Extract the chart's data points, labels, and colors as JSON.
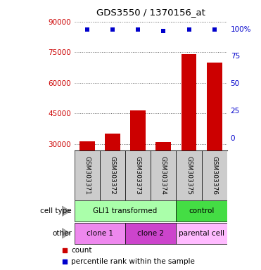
{
  "title": "GDS3550 / 1370156_at",
  "samples": [
    "GSM303371",
    "GSM303372",
    "GSM303373",
    "GSM303374",
    "GSM303375",
    "GSM303376"
  ],
  "counts": [
    31200,
    35000,
    46500,
    31000,
    74000,
    70000
  ],
  "percentile_ranks": [
    99,
    99,
    99,
    98,
    99,
    99
  ],
  "ylim_left": [
    27000,
    92000
  ],
  "yticks_left": [
    30000,
    45000,
    60000,
    75000,
    90000
  ],
  "ylim_right": [
    -11,
    110
  ],
  "yticks_right": [
    0,
    25,
    50,
    75,
    100
  ],
  "bar_color": "#cc0000",
  "dot_color": "#0000cc",
  "bar_width": 0.6,
  "cell_type_groups": [
    {
      "label": "GLI1 transformed",
      "samples": [
        0,
        1,
        2,
        3
      ],
      "color": "#aaffaa"
    },
    {
      "label": "control",
      "samples": [
        4,
        5
      ],
      "color": "#44dd44"
    }
  ],
  "other_groups": [
    {
      "label": "clone 1",
      "samples": [
        0,
        1
      ],
      "color": "#ee88ee"
    },
    {
      "label": "clone 2",
      "samples": [
        2,
        3
      ],
      "color": "#cc44cc"
    },
    {
      "label": "parental cell",
      "samples": [
        4,
        5
      ],
      "color": "#ffbbff"
    }
  ],
  "tick_label_color_left": "#cc0000",
  "tick_label_color_right": "#0000cc",
  "background_color": "#ffffff",
  "grid_color": "#666666",
  "sample_box_color": "#cccccc"
}
